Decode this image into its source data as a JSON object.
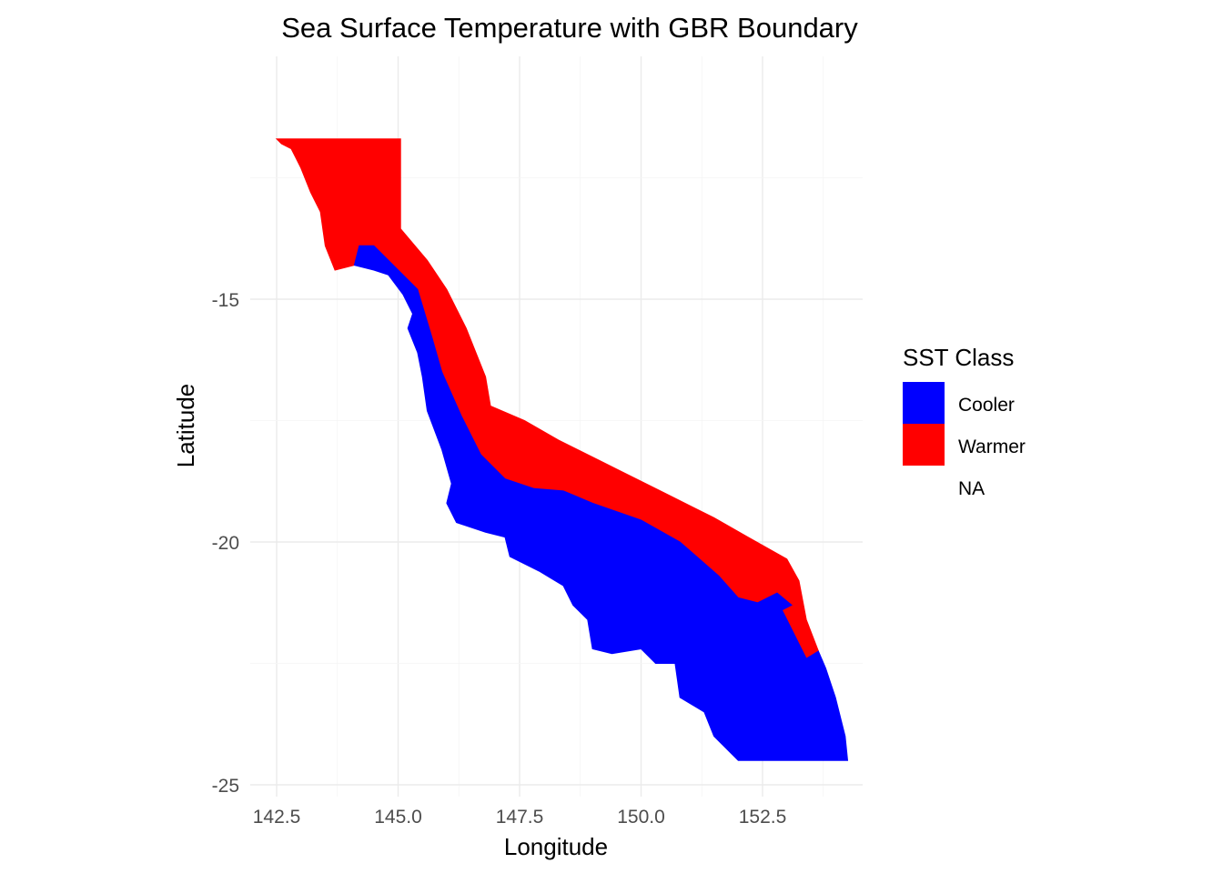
{
  "chart_data": {
    "type": "heatmap",
    "title": "Sea Surface Temperature with GBR Boundary",
    "xlabel": "Longitude",
    "ylabel": "Latitude",
    "xlim": [
      142.3,
      154.5
    ],
    "ylim": [
      -25.0,
      -11.3
    ],
    "x_ticks": [
      142.5,
      145.0,
      147.5,
      150.0,
      152.5
    ],
    "x_tick_labels": [
      "142.5",
      "145.0",
      "147.5",
      "150.0",
      "152.5"
    ],
    "y_ticks": [
      -15,
      -20,
      -25
    ],
    "y_tick_labels": [
      "-15",
      "-20",
      "-25"
    ],
    "grid": true,
    "legend": {
      "title": "SST Class",
      "position": "right",
      "entries": [
        {
          "label": "Cooler",
          "color": "#0000ff"
        },
        {
          "label": "Warmer",
          "color": "#ff0000"
        },
        {
          "label": "NA",
          "color": ""
        }
      ]
    },
    "regions": [
      {
        "class": "Warmer",
        "color": "#ff0000",
        "outline": [
          [
            142.5,
            -11.7
          ],
          [
            145.05,
            -11.7
          ],
          [
            145.05,
            -13.55
          ],
          [
            145.6,
            -14.2
          ],
          [
            146.0,
            -14.8
          ],
          [
            146.4,
            -15.6
          ],
          [
            146.8,
            -16.6
          ],
          [
            146.9,
            -17.2
          ],
          [
            147.6,
            -17.5
          ],
          [
            148.3,
            -17.9
          ],
          [
            149.5,
            -18.5
          ],
          [
            150.5,
            -19.0
          ],
          [
            151.5,
            -19.5
          ],
          [
            152.2,
            -19.9
          ],
          [
            153.0,
            -20.35
          ],
          [
            153.25,
            -20.8
          ],
          [
            153.4,
            -21.6
          ],
          [
            153.65,
            -22.25
          ],
          [
            153.4,
            -22.4
          ],
          [
            153.0,
            -21.6
          ],
          [
            152.9,
            -21.4
          ],
          [
            153.1,
            -21.3
          ],
          [
            152.8,
            -21.05
          ],
          [
            152.4,
            -21.25
          ],
          [
            152.0,
            -21.15
          ],
          [
            151.6,
            -20.7
          ],
          [
            150.8,
            -20.0
          ],
          [
            150.0,
            -19.55
          ],
          [
            149.0,
            -19.2
          ],
          [
            148.4,
            -18.95
          ],
          [
            147.8,
            -18.9
          ],
          [
            147.2,
            -18.7
          ],
          [
            146.7,
            -18.2
          ],
          [
            146.3,
            -17.4
          ],
          [
            145.9,
            -16.5
          ],
          [
            145.7,
            -15.8
          ],
          [
            145.4,
            -14.8
          ],
          [
            144.9,
            -14.3
          ],
          [
            144.5,
            -13.9
          ],
          [
            144.2,
            -13.9
          ],
          [
            144.1,
            -14.3
          ],
          [
            143.7,
            -14.4
          ],
          [
            143.5,
            -13.9
          ],
          [
            143.4,
            -13.2
          ],
          [
            143.2,
            -12.8
          ],
          [
            143.0,
            -12.3
          ],
          [
            142.9,
            -12.1
          ],
          [
            142.8,
            -11.9
          ],
          [
            142.6,
            -11.8
          ]
        ]
      },
      {
        "class": "Cooler",
        "color": "#0000ff",
        "outline": [
          [
            144.1,
            -14.3
          ],
          [
            144.2,
            -13.9
          ],
          [
            144.5,
            -13.9
          ],
          [
            144.9,
            -14.3
          ],
          [
            145.4,
            -14.8
          ],
          [
            145.7,
            -15.8
          ],
          [
            145.9,
            -16.5
          ],
          [
            146.3,
            -17.4
          ],
          [
            146.7,
            -18.2
          ],
          [
            147.2,
            -18.7
          ],
          [
            147.8,
            -18.9
          ],
          [
            148.4,
            -18.95
          ],
          [
            149.0,
            -19.2
          ],
          [
            150.0,
            -19.55
          ],
          [
            150.8,
            -20.0
          ],
          [
            151.6,
            -20.7
          ],
          [
            152.0,
            -21.15
          ],
          [
            152.4,
            -21.25
          ],
          [
            152.8,
            -21.05
          ],
          [
            153.1,
            -21.3
          ],
          [
            152.9,
            -21.4
          ],
          [
            153.0,
            -21.6
          ],
          [
            153.4,
            -22.4
          ],
          [
            153.65,
            -22.25
          ],
          [
            153.8,
            -22.6
          ],
          [
            154.0,
            -23.2
          ],
          [
            154.2,
            -24.0
          ],
          [
            154.25,
            -24.5
          ],
          [
            152.0,
            -24.5
          ],
          [
            151.5,
            -24.0
          ],
          [
            151.3,
            -23.5
          ],
          [
            150.8,
            -23.2
          ],
          [
            150.7,
            -22.5
          ],
          [
            150.3,
            -22.5
          ],
          [
            150.0,
            -22.2
          ],
          [
            149.4,
            -22.3
          ],
          [
            149.0,
            -22.2
          ],
          [
            148.9,
            -21.6
          ],
          [
            148.6,
            -21.3
          ],
          [
            148.4,
            -20.9
          ],
          [
            147.9,
            -20.6
          ],
          [
            147.3,
            -20.3
          ],
          [
            147.2,
            -19.9
          ],
          [
            146.8,
            -19.8
          ],
          [
            146.2,
            -19.6
          ],
          [
            146.0,
            -19.2
          ],
          [
            146.1,
            -18.8
          ],
          [
            145.9,
            -18.1
          ],
          [
            145.6,
            -17.3
          ],
          [
            145.5,
            -16.6
          ],
          [
            145.4,
            -16.1
          ],
          [
            145.2,
            -15.6
          ],
          [
            145.3,
            -15.3
          ],
          [
            145.1,
            -14.9
          ],
          [
            144.8,
            -14.5
          ],
          [
            144.5,
            -14.4
          ]
        ]
      }
    ]
  }
}
